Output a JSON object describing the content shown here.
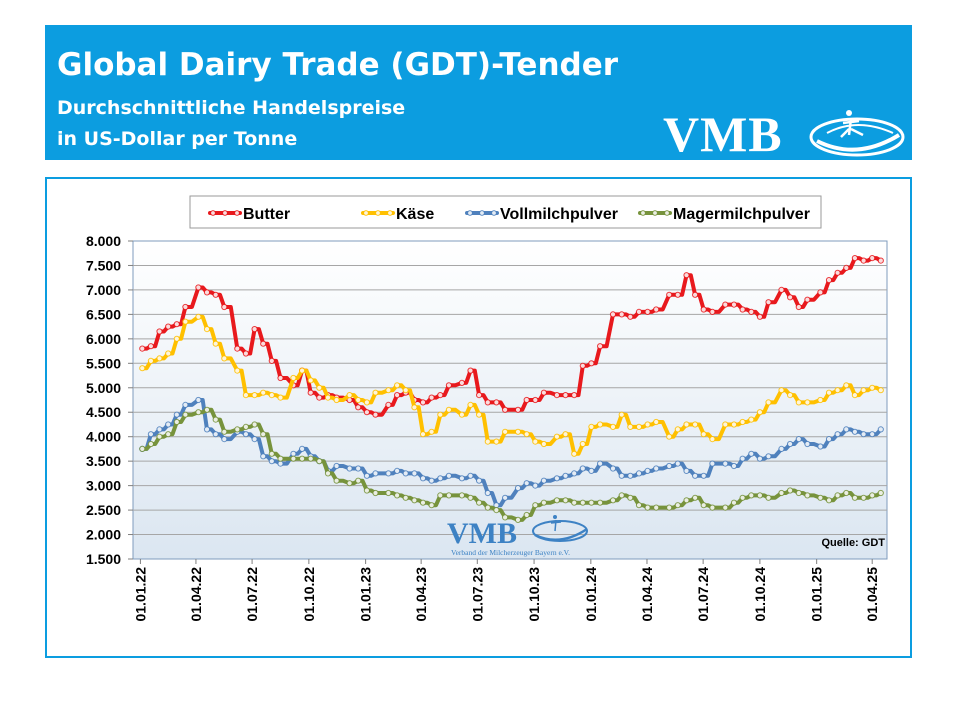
{
  "header": {
    "title": "Global Dairy Trade (GDT)-Tender",
    "subtitle_line1": "Durchschnittliche Handelspreise",
    "subtitle_line2": "in US-Dollar per Tonne",
    "logo_text": "VMB"
  },
  "watermark": {
    "logo_text": "VMB",
    "caption": "Verband der Milcherzeuger Bayern e.V."
  },
  "source_note": "Quelle:  GDT",
  "colors": {
    "header_bg": "#0c9de0",
    "Butter": "#e8191d",
    "Käse": "#ffc000",
    "Vollmilchpulver": "#4f81bd",
    "Magermilchpulver": "#77933c"
  },
  "chart_data": {
    "type": "line",
    "title": "",
    "xlabel": "",
    "ylabel": "",
    "ylim": [
      1500,
      8000
    ],
    "yticks": [
      1500,
      2000,
      2500,
      3000,
      3500,
      4000,
      4500,
      5000,
      5500,
      6000,
      6500,
      7000,
      7500,
      8000
    ],
    "ytick_labels": [
      "1.500",
      "2.000",
      "2.500",
      "3.000",
      "3.500",
      "4.000",
      "4.500",
      "5.000",
      "5.500",
      "6.000",
      "6.500",
      "7.000",
      "7.500",
      "8.000"
    ],
    "xticks": [
      "2022-01-01",
      "2022-04-01",
      "2022-07-01",
      "2022-10-01",
      "2023-01-01",
      "2023-04-01",
      "2023-07-01",
      "2023-10-01",
      "2024-01-01",
      "2024-04-01",
      "2024-07-01",
      "2024-10-01",
      "2025-01-01",
      "2025-04-01"
    ],
    "xtick_labels": [
      "01.01.22",
      "01.04.22",
      "01.07.22",
      "01.10.22",
      "01.01.23",
      "01.04.23",
      "01.07.23",
      "01.10.23",
      "01.01.24",
      "01.04.24",
      "01.07.24",
      "01.10.24",
      "01.01.25",
      "01.04.25"
    ],
    "grid": true,
    "legend_position": "top",
    "x": [
      "2022-01-04",
      "2022-01-18",
      "2022-02-01",
      "2022-02-15",
      "2022-03-01",
      "2022-03-15",
      "2022-04-05",
      "2022-04-19",
      "2022-05-03",
      "2022-05-17",
      "2022-06-07",
      "2022-06-21",
      "2022-07-05",
      "2022-07-19",
      "2022-08-02",
      "2022-08-16",
      "2022-09-06",
      "2022-09-20",
      "2022-10-04",
      "2022-10-18",
      "2022-11-01",
      "2022-11-15",
      "2022-12-06",
      "2022-12-20",
      "2023-01-03",
      "2023-01-17",
      "2023-02-07",
      "2023-02-21",
      "2023-03-07",
      "2023-03-21",
      "2023-04-04",
      "2023-04-18",
      "2023-05-02",
      "2023-05-16",
      "2023-06-06",
      "2023-06-20",
      "2023-07-04",
      "2023-07-18",
      "2023-08-01",
      "2023-08-15",
      "2023-09-05",
      "2023-09-19",
      "2023-10-03",
      "2023-10-17",
      "2023-11-07",
      "2023-11-21",
      "2023-12-05",
      "2023-12-19",
      "2024-01-02",
      "2024-01-16",
      "2024-02-06",
      "2024-02-20",
      "2024-03-05",
      "2024-03-19",
      "2024-04-02",
      "2024-04-16",
      "2024-05-07",
      "2024-05-21",
      "2024-06-04",
      "2024-06-18",
      "2024-07-02",
      "2024-07-16",
      "2024-08-06",
      "2024-08-20",
      "2024-09-03",
      "2024-09-17",
      "2024-10-01",
      "2024-10-15",
      "2024-11-05",
      "2024-11-19",
      "2024-12-03",
      "2024-12-17",
      "2025-01-07",
      "2025-01-21",
      "2025-02-04",
      "2025-02-18",
      "2025-03-04",
      "2025-03-18",
      "2025-04-01",
      "2025-04-15"
    ],
    "series": [
      {
        "name": "Butter",
        "values": [
          5800,
          5850,
          6150,
          6250,
          6300,
          6650,
          7050,
          6950,
          6900,
          6650,
          5800,
          5700,
          6200,
          5900,
          5550,
          5200,
          5050,
          5350,
          4900,
          4800,
          4850,
          4800,
          4750,
          4600,
          4500,
          4450,
          4650,
          4850,
          4900,
          4750,
          4700,
          4800,
          4850,
          5050,
          5100,
          5350,
          4850,
          4700,
          4700,
          4550,
          4550,
          4750,
          4750,
          4900,
          4850,
          4850,
          4850,
          5450,
          5500,
          5850,
          6500,
          6500,
          6450,
          6550,
          6550,
          6600,
          6900,
          6900,
          7300,
          6900,
          6600,
          6550,
          6700,
          6700,
          6600,
          6550,
          6450,
          6750,
          7000,
          6850,
          6650,
          6800,
          6950,
          7200,
          7350,
          7450,
          7650,
          7600,
          7650,
          7600
        ]
      },
      {
        "name": "Käse",
        "values": [
          5400,
          5550,
          5600,
          5700,
          6000,
          6350,
          6450,
          6200,
          5900,
          5600,
          5350,
          4850,
          4850,
          4900,
          4850,
          4800,
          5200,
          5350,
          5150,
          5000,
          4800,
          4750,
          4850,
          4750,
          4700,
          4900,
          4950,
          5050,
          4950,
          4600,
          4050,
          4100,
          4450,
          4550,
          4450,
          4650,
          4450,
          3900,
          3900,
          4100,
          4100,
          4050,
          3900,
          3850,
          4000,
          4050,
          3650,
          3850,
          4200,
          4250,
          4200,
          4450,
          4200,
          4200,
          4250,
          4300,
          4000,
          4150,
          4250,
          4250,
          4050,
          3950,
          4250,
          4250,
          4300,
          4350,
          4500,
          4700,
          4950,
          4850,
          4700,
          4700,
          4750,
          4900,
          4950,
          5050,
          4850,
          4950,
          5000,
          4950
        ]
      },
      {
        "name": "Vollmilchpulver",
        "values": [
          3750,
          4050,
          4150,
          4250,
          4450,
          4650,
          4750,
          4150,
          4050,
          3950,
          4100,
          4050,
          3950,
          3600,
          3500,
          3450,
          3650,
          3750,
          3600,
          3500,
          3300,
          3400,
          3350,
          3350,
          3200,
          3250,
          3250,
          3300,
          3250,
          3250,
          3150,
          3100,
          3150,
          3200,
          3150,
          3200,
          3100,
          2850,
          2600,
          2750,
          2950,
          3050,
          3000,
          3100,
          3150,
          3200,
          3250,
          3350,
          3300,
          3450,
          3350,
          3200,
          3200,
          3250,
          3300,
          3350,
          3400,
          3450,
          3300,
          3200,
          3200,
          3450,
          3450,
          3400,
          3550,
          3650,
          3550,
          3600,
          3750,
          3850,
          3950,
          3850,
          3800,
          3950,
          4050,
          4150,
          4100,
          4050,
          4050,
          4150
        ]
      },
      {
        "name": "Magermilchpulver",
        "values": [
          3750,
          3850,
          4000,
          4050,
          4300,
          4450,
          4500,
          4550,
          4350,
          4100,
          4150,
          4200,
          4250,
          4050,
          3650,
          3550,
          3550,
          3550,
          3550,
          3500,
          3250,
          3100,
          3050,
          3100,
          2900,
          2850,
          2850,
          2800,
          2750,
          2700,
          2650,
          2600,
          2800,
          2800,
          2800,
          2750,
          2650,
          2550,
          2500,
          2350,
          2300,
          2400,
          2600,
          2650,
          2700,
          2700,
          2650,
          2650,
          2650,
          2650,
          2700,
          2800,
          2750,
          2600,
          2550,
          2550,
          2550,
          2600,
          2700,
          2750,
          2600,
          2550,
          2550,
          2650,
          2750,
          2800,
          2800,
          2750,
          2850,
          2900,
          2850,
          2800,
          2750,
          2700,
          2800,
          2850,
          2750,
          2750,
          2800,
          2850
        ]
      }
    ]
  }
}
